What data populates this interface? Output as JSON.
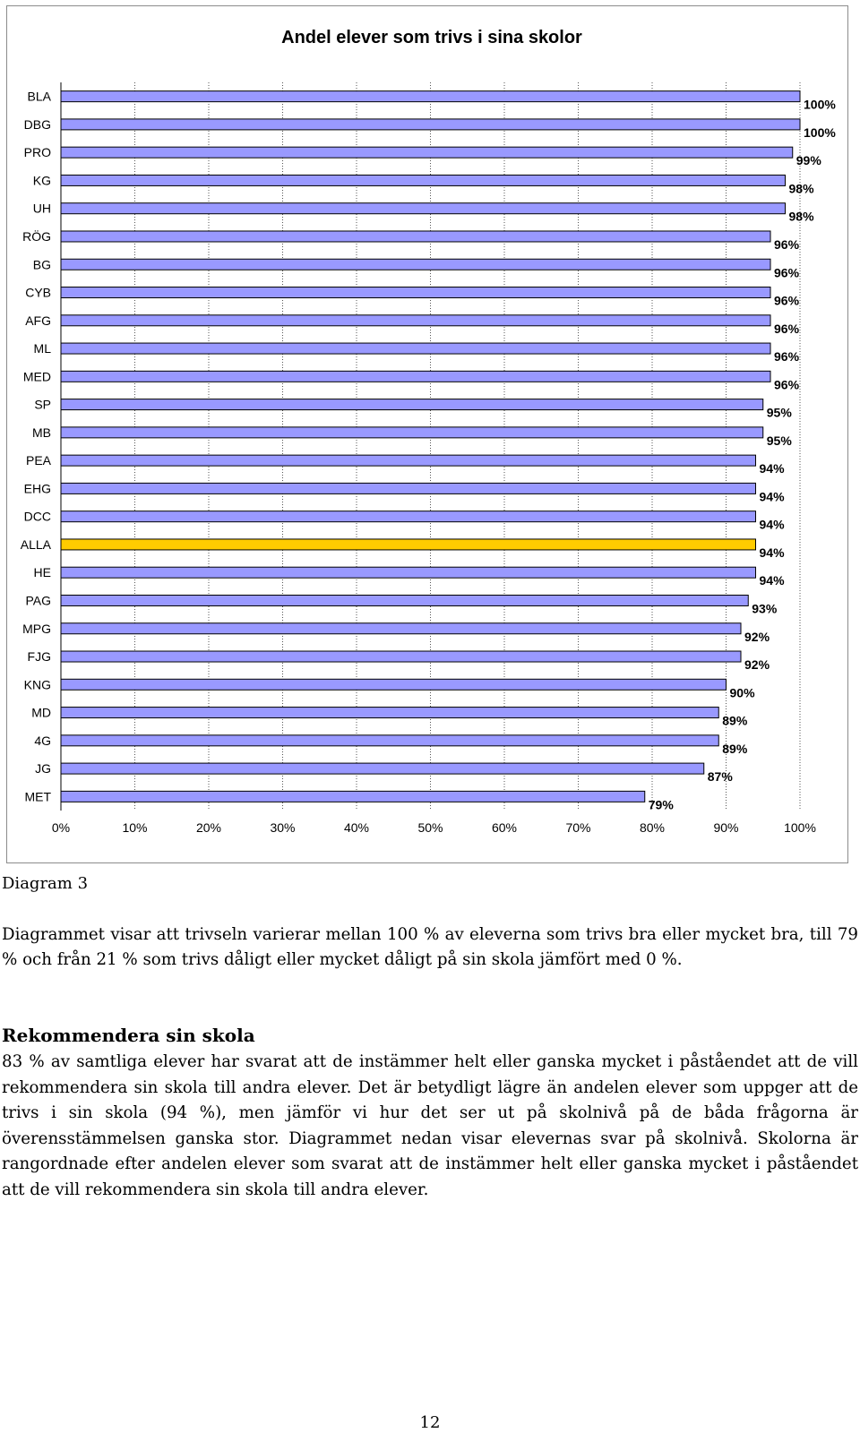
{
  "chart_data": {
    "type": "bar",
    "orientation": "horizontal",
    "title": "Andel elever som trivs i sina skolor",
    "categories": [
      "BLA",
      "DBG",
      "PRO",
      "KG",
      "UH",
      "RÖG",
      "BG",
      "CYB",
      "AFG",
      "ML",
      "MED",
      "SP",
      "MB",
      "PEA",
      "EHG",
      "DCC",
      "ALLA",
      "HE",
      "PAG",
      "MPG",
      "FJG",
      "KNG",
      "MD",
      "4G",
      "JG",
      "MET"
    ],
    "values": [
      100,
      100,
      99,
      98,
      98,
      96,
      96,
      96,
      96,
      96,
      96,
      95,
      95,
      94,
      94,
      94,
      94,
      94,
      93,
      92,
      92,
      90,
      89,
      89,
      87,
      79
    ],
    "data_labels": [
      "100%",
      "100%",
      "99%",
      "98%",
      "98%",
      "96%",
      "96%",
      "96%",
      "96%",
      "96%",
      "96%",
      "95%",
      "95%",
      "94%",
      "94%",
      "94%",
      "94%",
      "94%",
      "93%",
      "92%",
      "92%",
      "90%",
      "89%",
      "89%",
      "87%",
      "79%"
    ],
    "highlight_category": "ALLA",
    "xlim": [
      0,
      100
    ],
    "x_ticks": [
      "0%",
      "10%",
      "20%",
      "30%",
      "40%",
      "50%",
      "60%",
      "70%",
      "80%",
      "90%",
      "100%"
    ],
    "grid": "vertical dotted",
    "colors": {
      "bar": "#9999ff",
      "highlight": "#ffcc00",
      "bar_edge": "#000000",
      "frame": "#8c8c8c"
    }
  },
  "caption": "Diagram 3",
  "paragraph1": "Diagrammet visar att trivseln varierar mellan 100 % av eleverna som trivs bra eller mycket bra, till 79 % och från 21 % som trivs dåligt eller mycket dåligt på sin skola jämfört med 0 %.",
  "section_heading": "Rekommendera sin skola",
  "paragraph2": "83 % av samtliga elever har svarat att de instämmer helt eller ganska mycket i påståendet att de vill rekommendera sin skola till andra elever. Det är betydligt lägre än andelen elever som uppger att de trivs i sin skola (94 %), men jämför vi hur det ser ut på skolnivå på de båda frågorna är överensstämmelsen ganska stor. Diagrammet nedan visar elevernas svar på skolnivå. Skolorna är rangordnade efter andelen elever som svarat att de instämmer helt eller ganska mycket i påståendet att de vill rekommendera sin skola till andra elever.",
  "page_number": "12"
}
